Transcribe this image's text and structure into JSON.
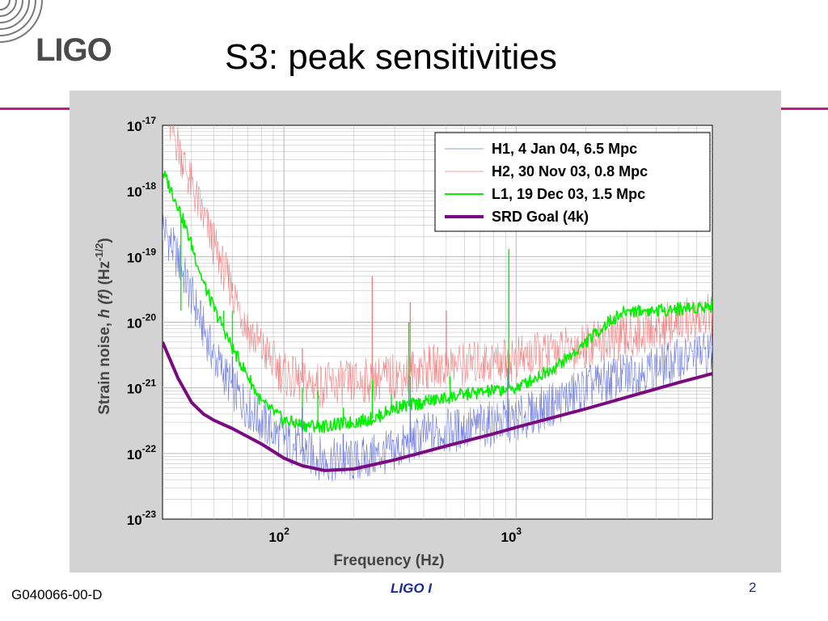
{
  "slide": {
    "logo_text": "LIGO",
    "title": "S3: peak sensitivities",
    "footer_id": "G040066-00-D",
    "footer_center": "LIGO I",
    "page_number": "2"
  },
  "colors": {
    "accent_rule": "#c21b8b",
    "panel": "#d3d3d3",
    "h1": "#6b78e0",
    "h2": "#f08080",
    "l1": "#00f000",
    "srd": "#7a0a80"
  },
  "chart_data": {
    "type": "line",
    "x_scale": "log",
    "y_scale": "log",
    "xlim": [
      30,
      7000
    ],
    "ylim": [
      1e-23,
      1e-17
    ],
    "xlabel": "Frequency (Hz)",
    "ylabel": "Strain noise, h (f) (Hz-1/2)",
    "ylabel_parts": {
      "main": "Strain noise, ",
      "h": "h",
      "f": " (f)",
      "hz": " (Hz",
      "exp": "-1/2",
      "close": ")"
    },
    "x_ticks": [
      {
        "base": "10",
        "exp": "2",
        "value": 100
      },
      {
        "base": "10",
        "exp": "3",
        "value": 1000
      }
    ],
    "y_ticks": [
      {
        "base": "10",
        "exp": "-17",
        "value": 1e-17
      },
      {
        "base": "10",
        "exp": "-18",
        "value": 1e-18
      },
      {
        "base": "10",
        "exp": "-19",
        "value": 1e-19
      },
      {
        "base": "10",
        "exp": "-20",
        "value": 1e-20
      },
      {
        "base": "10",
        "exp": "-21",
        "value": 1e-21
      },
      {
        "base": "10",
        "exp": "-22",
        "value": 1e-22
      },
      {
        "base": "10",
        "exp": "-23",
        "value": 1e-23
      }
    ],
    "grid": true,
    "legend": "top-right",
    "series": [
      {
        "name": "H1, 4 Jan 04, 6.5 Mpc",
        "color": "#6b78e0",
        "x": [
          30,
          35,
          40,
          45,
          50,
          60,
          70,
          80,
          100,
          120,
          150,
          200,
          300,
          400,
          600,
          1000,
          1500,
          2000,
          3000,
          4000,
          5000,
          7000
        ],
        "y": [
          3e-19,
          9e-20,
          2.5e-20,
          8e-21,
          3e-21,
          1e-21,
          5e-22,
          3e-22,
          1.6e-22,
          1.1e-22,
          8e-23,
          7.5e-23,
          1.1e-22,
          1.9e-22,
          2.4e-22,
          3.2e-22,
          6e-22,
          1e-21,
          1.6e-21,
          2e-21,
          2.6e-21,
          3.5e-21
        ]
      },
      {
        "name": "H2, 30 Nov 03, 0.8 Mpc",
        "color": "#f08080",
        "x": [
          30,
          35,
          40,
          45,
          50,
          60,
          70,
          80,
          100,
          120,
          150,
          200,
          300,
          400,
          600,
          1000,
          1500,
          2000,
          3000,
          4000,
          5000,
          7000
        ],
        "y": [
          2e-17,
          5e-18,
          1.2e-18,
          4e-19,
          1.5e-19,
          3e-20,
          8e-21,
          4e-21,
          1.6e-21,
          1.2e-21,
          1.1e-21,
          1.2e-21,
          1.5e-21,
          2e-21,
          2.3e-21,
          2.8e-21,
          3.5e-21,
          4.5e-21,
          6e-21,
          8e-21,
          1e-20,
          1.3e-20
        ]
      },
      {
        "name": "L1, 19 Dec 03, 1.5 Mpc",
        "color": "#00f000",
        "x": [
          30,
          35,
          40,
          45,
          50,
          55,
          60,
          70,
          80,
          100,
          120,
          150,
          200,
          250,
          300,
          400,
          500,
          600,
          800,
          1000,
          1200,
          1500,
          1800,
          2000,
          2500,
          3000,
          4000,
          5000,
          6000,
          7000
        ],
        "y": [
          2e-18,
          6e-19,
          1.5e-19,
          4e-20,
          1.6e-20,
          8e-21,
          4e-21,
          1.5e-21,
          6e-22,
          3.2e-22,
          2.7e-22,
          2.6e-22,
          3e-22,
          3.5e-22,
          5e-22,
          6e-22,
          7e-22,
          8e-22,
          9e-22,
          1e-21,
          1.4e-21,
          2.2e-21,
          3.5e-21,
          5e-21,
          1e-20,
          1.5e-20,
          1.5e-20,
          1.6e-20,
          1.7e-20,
          1.8e-20
        ]
      },
      {
        "name": "SRD Goal (4k)",
        "color": "#7a0a80",
        "x": [
          30,
          35,
          40,
          45,
          50,
          60,
          80,
          100,
          120,
          150,
          200,
          300,
          500,
          800,
          1000,
          2000,
          3000,
          5000,
          7000
        ],
        "y": [
          5e-21,
          1.4e-21,
          6e-22,
          4e-22,
          3.2e-22,
          2.4e-22,
          1.4e-22,
          8.5e-23,
          6.5e-23,
          5.5e-23,
          5.8e-23,
          8e-23,
          1.3e-22,
          2e-22,
          2.5e-22,
          4.8e-22,
          7.2e-22,
          1.2e-21,
          1.65e-21
        ]
      }
    ],
    "annotations": [
      {
        "series": "L1, 19 Dec 03, 1.5 Mpc",
        "type": "line-spikes",
        "x": [
          36,
          46,
          55,
          60,
          120,
          140,
          180,
          240,
          290,
          345,
          420,
          520,
          575,
          930
        ],
        "y": [
          1.5e-20,
          3e-20,
          1.5e-20,
          1.5e-20,
          1e-21,
          9e-22,
          5e-22,
          1.5e-21,
          8e-22,
          1e-20,
          8e-22,
          1.5e-21,
          1e-21,
          1.3e-19
        ]
      },
      {
        "series": "H2, 30 Nov 03, 0.8 Mpc",
        "type": "line-spikes",
        "x": [
          60,
          120,
          240,
          350,
          500
        ],
        "y": [
          4e-20,
          4e-21,
          5e-20,
          2e-20,
          1.5e-20
        ]
      },
      {
        "series": "H1, 4 Jan 04, 6.5 Mpc",
        "type": "line-spikes",
        "x": [
          60,
          120,
          180,
          350,
          920
        ],
        "y": [
          3e-21,
          5e-22,
          2e-22,
          1.5e-21,
          2e-21
        ]
      }
    ]
  }
}
